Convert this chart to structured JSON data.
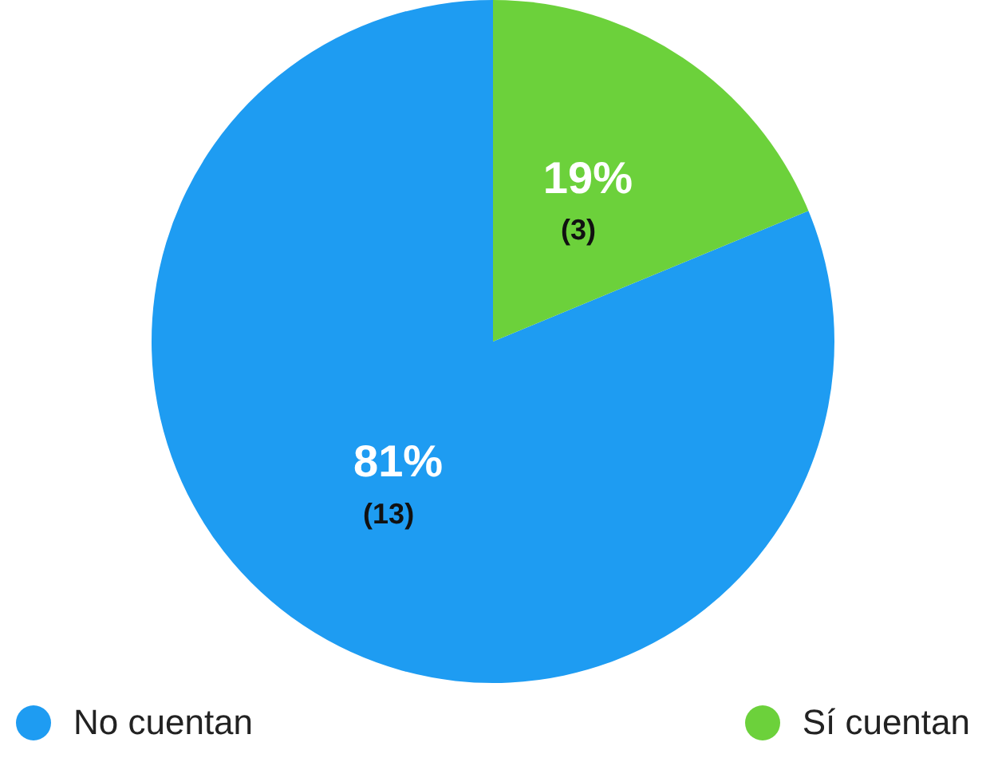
{
  "chart_data": {
    "type": "pie",
    "categories": [
      "No cuentan",
      "Sí cuentan"
    ],
    "values": [
      13,
      3
    ],
    "colors": [
      "#1e9cf2",
      "#6cd13b"
    ],
    "value_labels": [
      "81%\n(13)",
      "19%\n(3)"
    ],
    "legend": "bottom"
  }
}
